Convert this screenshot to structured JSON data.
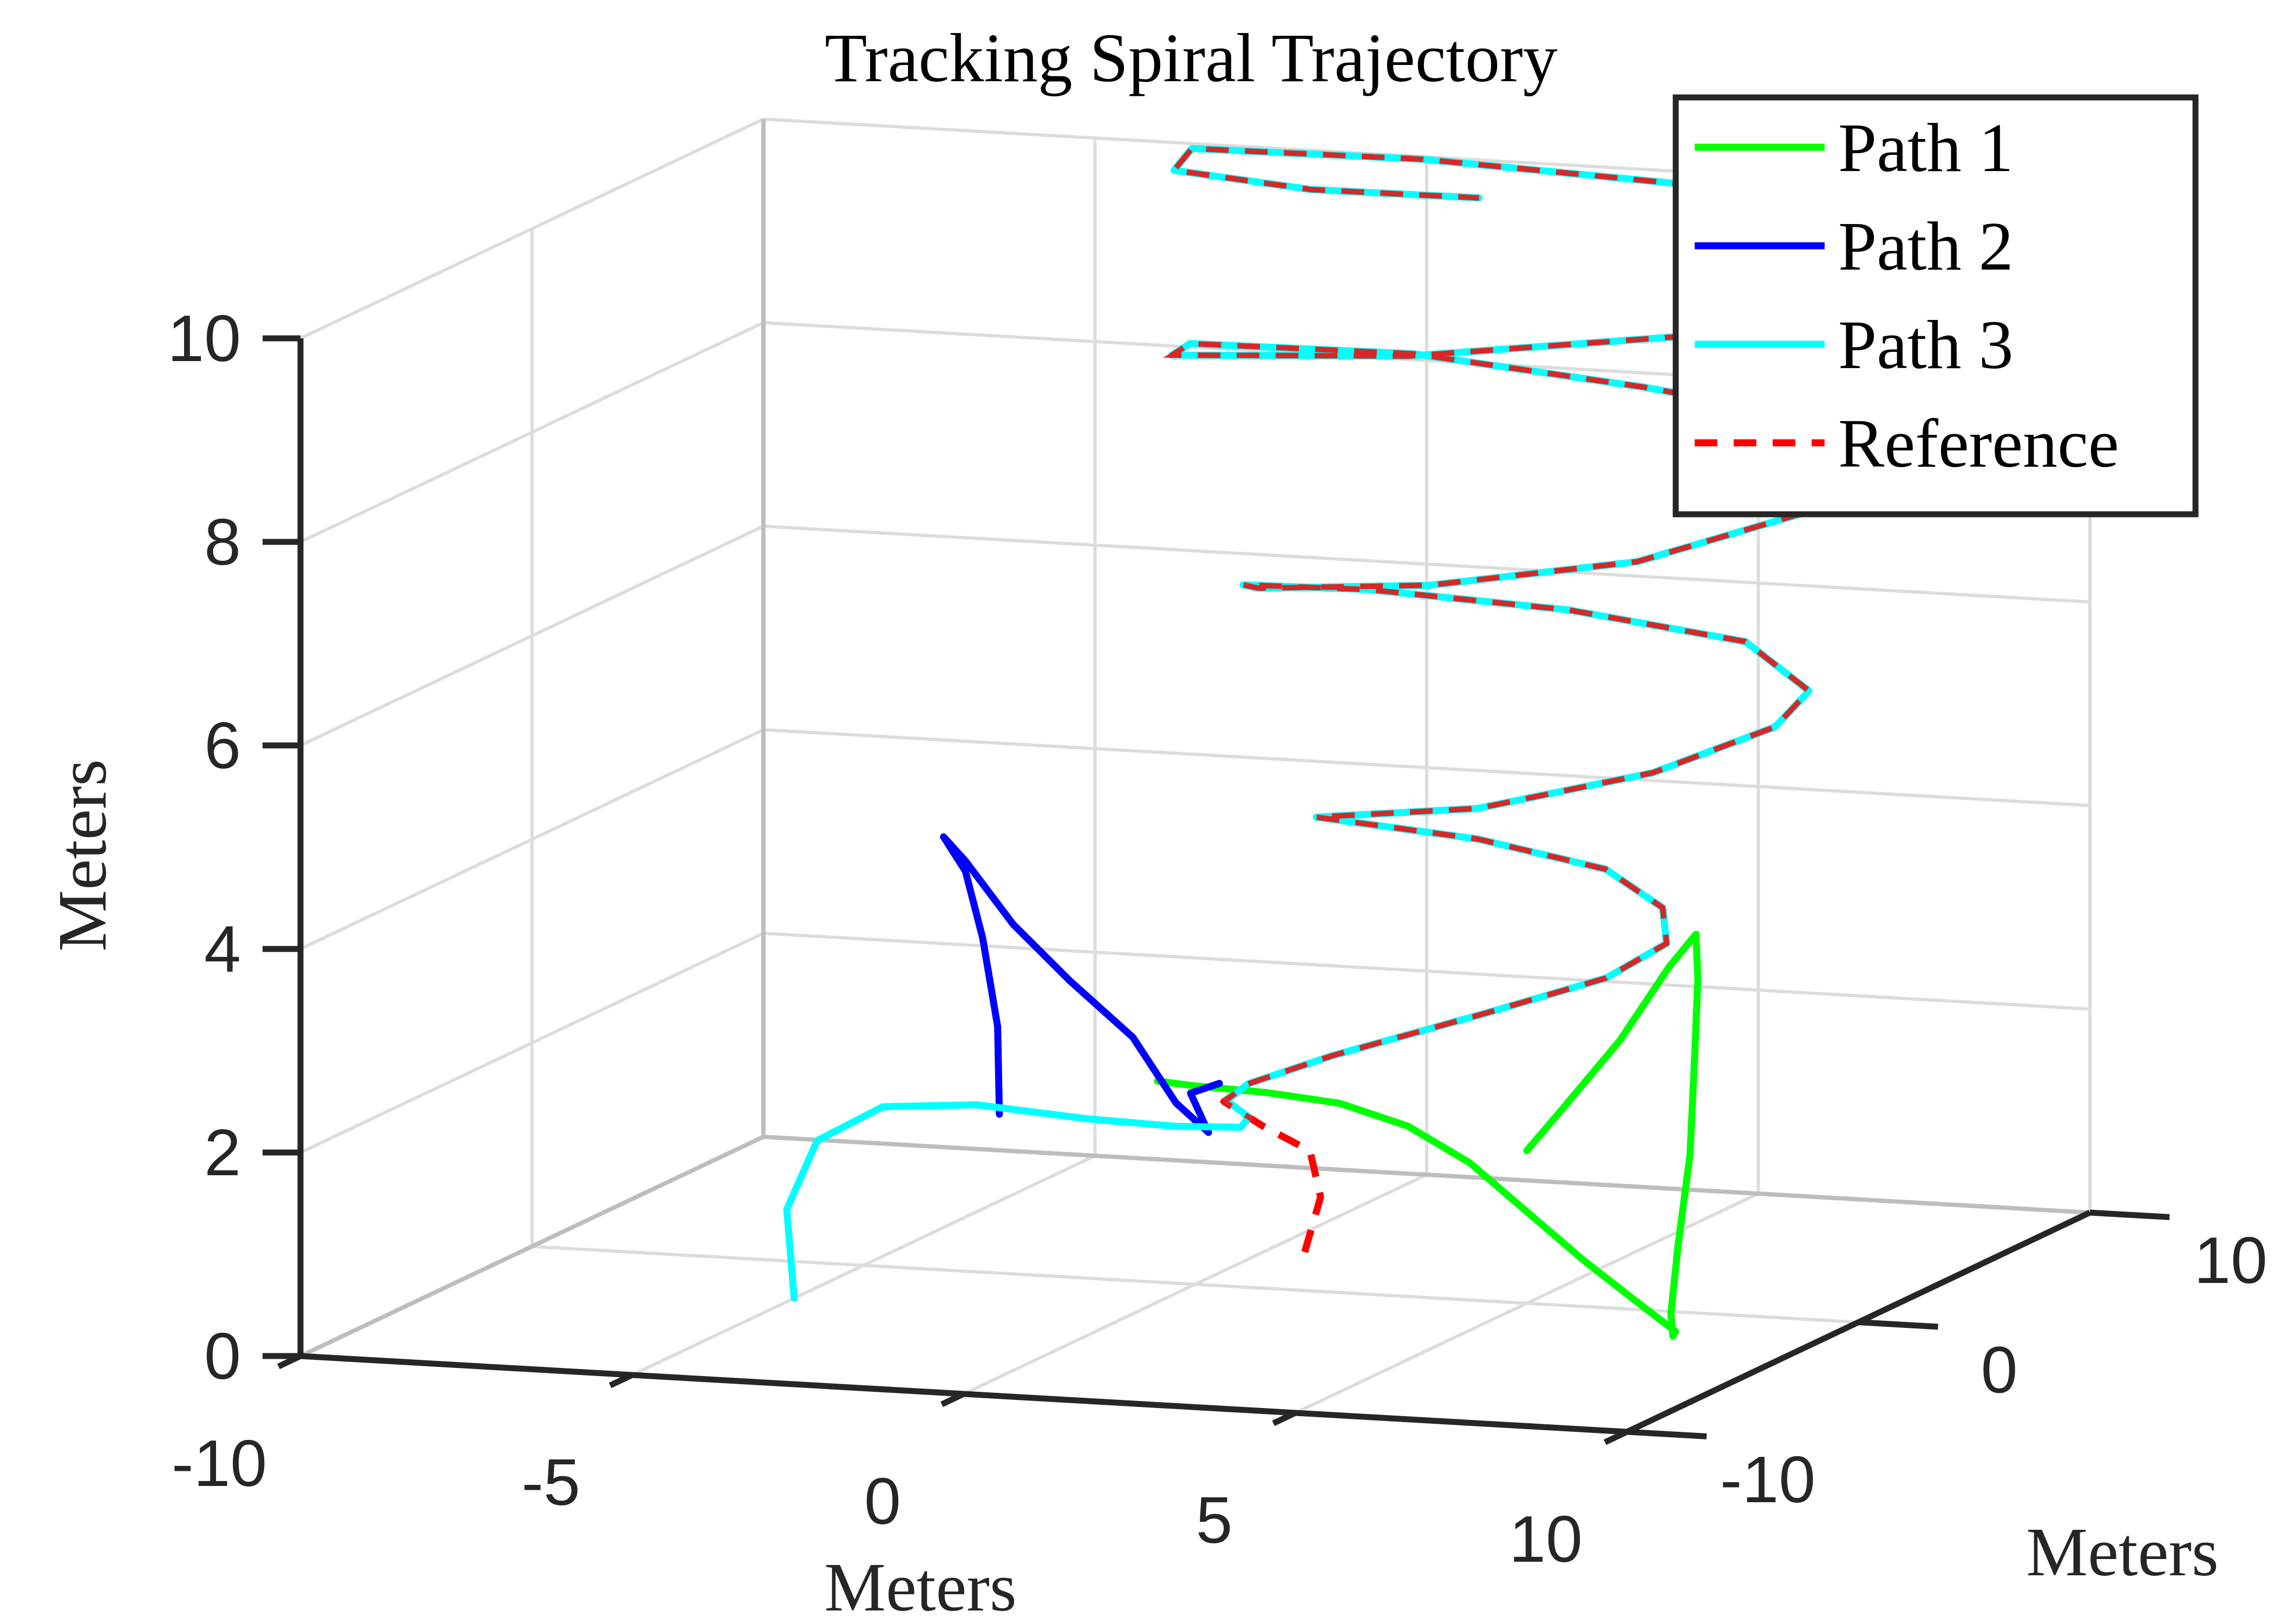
{
  "chart_data": {
    "type": "line",
    "projection": "3d",
    "title": "Tracking Spiral Trajectory",
    "xlabel": "Meters",
    "ylabel": "Meters",
    "zlabel": "Meters",
    "xlim": [
      -10,
      10
    ],
    "ylim": [
      -10,
      10
    ],
    "zlim": [
      0,
      10
    ],
    "x_ticks": [
      -10,
      -5,
      0,
      5,
      10
    ],
    "y_ticks": [
      -10,
      0,
      10
    ],
    "z_ticks": [
      0,
      2,
      4,
      6,
      8,
      10
    ],
    "x_tick_labels": [
      "-10",
      "-5",
      "0",
      "5",
      "10"
    ],
    "y_tick_labels": [
      "-10",
      "0",
      "10"
    ],
    "z_tick_labels": [
      "0",
      "2",
      "4",
      "6",
      "8",
      "10"
    ],
    "grid": true,
    "box": false,
    "legend_position": "top-right",
    "series": [
      {
        "name": "Path 1",
        "color": "#00ff00",
        "style": "solid",
        "points": [
          [
            5.0,
            0.0,
            1.5
          ],
          [
            5.5,
            0.0,
            1.9
          ],
          [
            6.3,
            0.3,
            2.6
          ],
          [
            6.9,
            0.7,
            3.3
          ],
          [
            7.2,
            1.0,
            3.6
          ],
          [
            7.3,
            0.8,
            3.2
          ],
          [
            7.4,
            0.4,
            2.6
          ],
          [
            7.6,
            -0.4,
            1.6
          ],
          [
            7.7,
            -1.2,
            0.8
          ],
          [
            7.8,
            -1.8,
            0.2
          ],
          [
            7.9,
            -2.0,
            0.0
          ],
          [
            7.8,
            -1.6,
            0.0
          ],
          [
            7.0,
            -1.0,
            0.2
          ],
          [
            6.0,
            -0.4,
            0.5
          ],
          [
            5.0,
            0.0,
            0.9
          ],
          [
            4.0,
            0.4,
            1.3
          ],
          [
            3.0,
            0.6,
            1.6
          ],
          [
            2.0,
            0.5,
            1.8
          ],
          [
            1.0,
            0.2,
            1.9
          ],
          [
            0.0,
            0.0,
            1.95
          ],
          [
            -0.5,
            -0.2,
            2.0
          ]
        ]
      },
      {
        "name": "Path 2",
        "color": "#0000ff",
        "style": "solid",
        "points": [
          [
            -4.0,
            3.0,
            1.2
          ],
          [
            -4.2,
            3.5,
            2.0
          ],
          [
            -4.6,
            4.0,
            2.8
          ],
          [
            -5.0,
            4.4,
            3.4
          ],
          [
            -5.4,
            4.6,
            3.7
          ],
          [
            -5.0,
            4.4,
            3.5
          ],
          [
            -4.0,
            3.6,
            3.0
          ],
          [
            -2.8,
            2.6,
            2.6
          ],
          [
            -1.5,
            1.6,
            2.2
          ],
          [
            -0.5,
            0.6,
            1.7
          ],
          [
            0.2,
            0.0,
            1.5
          ],
          [
            0.0,
            -0.2,
            1.9
          ],
          [
            0.4,
            -0.1,
            2.0
          ]
        ]
      },
      {
        "name": "Path 3",
        "color": "#00ffff",
        "style": "solid",
        "points": [
          [
            -5.0,
            -3.0,
            0.0
          ],
          [
            -5.6,
            -1.6,
            0.7
          ],
          [
            -5.7,
            0.0,
            1.2
          ],
          [
            -5.2,
            1.4,
            1.4
          ],
          [
            -4.0,
            2.0,
            1.4
          ],
          [
            -2.4,
            2.2,
            1.3
          ],
          [
            -1.0,
            2.0,
            1.3
          ],
          [
            0.2,
            1.4,
            1.4
          ],
          [
            0.6,
            0.6,
            1.6
          ],
          [
            0.4,
            0.2,
            1.8
          ],
          [
            0.8,
            0.0,
            2.0
          ],
          [
            2.0,
            0.2,
            2.3
          ],
          [
            4.0,
            1.0,
            2.7
          ],
          [
            5.5,
            2.0,
            3.0
          ],
          [
            6.2,
            2.6,
            3.3
          ],
          [
            6.0,
            3.0,
            3.6
          ],
          [
            5.0,
            3.4,
            3.9
          ],
          [
            3.0,
            3.6,
            4.1
          ],
          [
            0.5,
            3.8,
            4.2
          ],
          [
            3.0,
            3.6,
            4.4
          ],
          [
            5.5,
            4.0,
            4.8
          ],
          [
            7.0,
            5.0,
            5.2
          ],
          [
            7.3,
            5.6,
            5.5
          ],
          [
            6.2,
            6.0,
            5.9
          ],
          [
            3.5,
            6.1,
            6.1
          ],
          [
            0.5,
            6.0,
            6.2
          ],
          [
            -1.3,
            5.8,
            6.2
          ],
          [
            -1.0,
            5.6,
            6.2
          ],
          [
            1.5,
            5.8,
            6.3
          ],
          [
            4.5,
            6.2,
            6.6
          ],
          [
            6.8,
            6.8,
            7.1
          ],
          [
            7.6,
            7.4,
            7.5
          ],
          [
            6.8,
            7.8,
            7.9
          ],
          [
            4.0,
            8.0,
            8.1
          ],
          [
            0.5,
            8.0,
            8.3
          ],
          [
            -2.8,
            7.8,
            8.3
          ],
          [
            -3.0,
            7.6,
            8.2
          ],
          [
            0.5,
            7.8,
            8.3
          ],
          [
            4.5,
            8.2,
            8.6
          ],
          [
            7.6,
            8.8,
            9.1
          ],
          [
            8.3,
            9.2,
            9.4
          ],
          [
            7.2,
            9.6,
            9.7
          ],
          [
            4.0,
            9.8,
            9.9
          ],
          [
            0.0,
            9.8,
            10.0
          ],
          [
            -3.4,
            9.6,
            10.0
          ],
          [
            -3.6,
            9.4,
            9.8
          ],
          [
            -1.5,
            9.3,
            9.7
          ],
          [
            1.0,
            9.4,
            9.7
          ]
        ]
      },
      {
        "name": "Reference",
        "color": "#ff0000",
        "style": "dashed",
        "points": [
          [
            2.0,
            -1.0,
            0.5
          ],
          [
            2.1,
            -0.6,
            1.0
          ],
          [
            1.8,
            -0.2,
            1.4
          ],
          [
            1.0,
            0.0,
            1.6
          ],
          [
            0.4,
            0.1,
            1.8
          ],
          [
            0.8,
            0.0,
            2.0
          ],
          [
            2.0,
            0.2,
            2.3
          ],
          [
            4.0,
            1.0,
            2.7
          ],
          [
            5.5,
            2.0,
            3.0
          ],
          [
            6.2,
            2.6,
            3.3
          ],
          [
            6.0,
            3.0,
            3.6
          ],
          [
            5.0,
            3.4,
            3.9
          ],
          [
            3.0,
            3.6,
            4.1
          ],
          [
            0.5,
            3.8,
            4.2
          ],
          [
            3.0,
            3.6,
            4.4
          ],
          [
            5.5,
            4.0,
            4.8
          ],
          [
            7.0,
            5.0,
            5.2
          ],
          [
            7.3,
            5.6,
            5.5
          ],
          [
            6.2,
            6.0,
            5.9
          ],
          [
            3.5,
            6.1,
            6.1
          ],
          [
            0.5,
            6.0,
            6.2
          ],
          [
            -1.3,
            5.8,
            6.2
          ],
          [
            -1.0,
            5.6,
            6.2
          ],
          [
            1.5,
            5.8,
            6.3
          ],
          [
            4.5,
            6.2,
            6.6
          ],
          [
            6.8,
            6.8,
            7.1
          ],
          [
            7.6,
            7.4,
            7.5
          ],
          [
            6.8,
            7.8,
            7.9
          ],
          [
            4.0,
            8.0,
            8.1
          ],
          [
            0.5,
            8.0,
            8.3
          ],
          [
            -2.8,
            7.8,
            8.3
          ],
          [
            -3.0,
            7.6,
            8.2
          ],
          [
            0.5,
            7.8,
            8.3
          ],
          [
            4.5,
            8.2,
            8.6
          ],
          [
            7.6,
            8.8,
            9.1
          ],
          [
            8.3,
            9.2,
            9.4
          ],
          [
            7.2,
            9.6,
            9.7
          ],
          [
            4.0,
            9.8,
            9.9
          ],
          [
            0.0,
            9.8,
            10.0
          ],
          [
            -3.4,
            9.6,
            10.0
          ],
          [
            -3.6,
            9.4,
            9.8
          ],
          [
            -1.5,
            9.3,
            9.7
          ],
          [
            1.0,
            9.4,
            9.7
          ]
        ]
      }
    ]
  }
}
